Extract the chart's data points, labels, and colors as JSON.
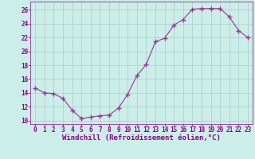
{
  "x": [
    0,
    1,
    2,
    3,
    4,
    5,
    6,
    7,
    8,
    9,
    10,
    11,
    12,
    13,
    14,
    15,
    16,
    17,
    18,
    19,
    20,
    21,
    22,
    23
  ],
  "y": [
    14.7,
    14.0,
    13.9,
    13.2,
    11.5,
    10.3,
    10.5,
    10.7,
    10.8,
    11.8,
    13.8,
    16.5,
    18.1,
    21.4,
    21.9,
    23.8,
    24.6,
    26.1,
    26.2,
    26.2,
    26.2,
    25.0,
    23.0,
    22.0
  ],
  "line_color": "#993399",
  "marker": "P",
  "marker_size": 2.5,
  "bg_color": "#cceee8",
  "grid_color": "#aacccc",
  "xlabel": "Windchill (Refroidissement éolien,°C)",
  "xlim": [
    -0.5,
    23.5
  ],
  "ylim": [
    9.5,
    27.2
  ],
  "yticks": [
    10,
    12,
    14,
    16,
    18,
    20,
    22,
    24,
    26
  ],
  "xticks": [
    0,
    1,
    2,
    3,
    4,
    5,
    6,
    7,
    8,
    9,
    10,
    11,
    12,
    13,
    14,
    15,
    16,
    17,
    18,
    19,
    20,
    21,
    22,
    23
  ],
  "tick_color": "#880088",
  "label_color": "#880088",
  "label_fontsize": 6.5,
  "tick_fontsize": 5.5
}
